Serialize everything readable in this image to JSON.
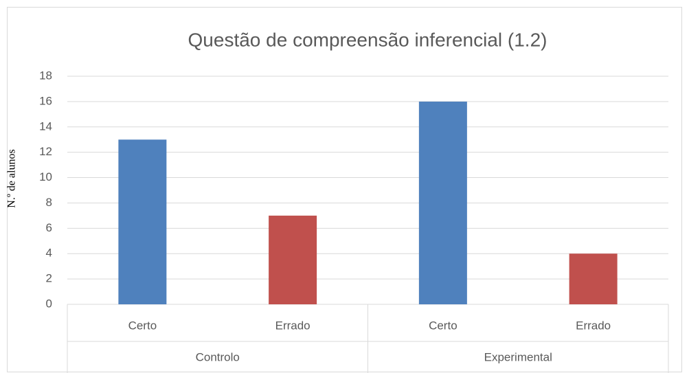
{
  "chart_data": {
    "type": "bar",
    "title": "Questão de compreensão inferencial (1.2)",
    "y_label": "N.º de alunos",
    "categories": [
      "Certo",
      "Errado",
      "Certo",
      "Errado"
    ],
    "groups": [
      "Controlo",
      "Experimental"
    ],
    "values": [
      13,
      7,
      16,
      4
    ],
    "colors": [
      "#4f81bd",
      "#c0504d",
      "#4f81bd",
      "#c0504d"
    ],
    "ylim": [
      0,
      18
    ],
    "yticks": [
      0,
      2,
      4,
      6,
      8,
      10,
      12,
      14,
      16,
      18
    ],
    "grid": true
  }
}
